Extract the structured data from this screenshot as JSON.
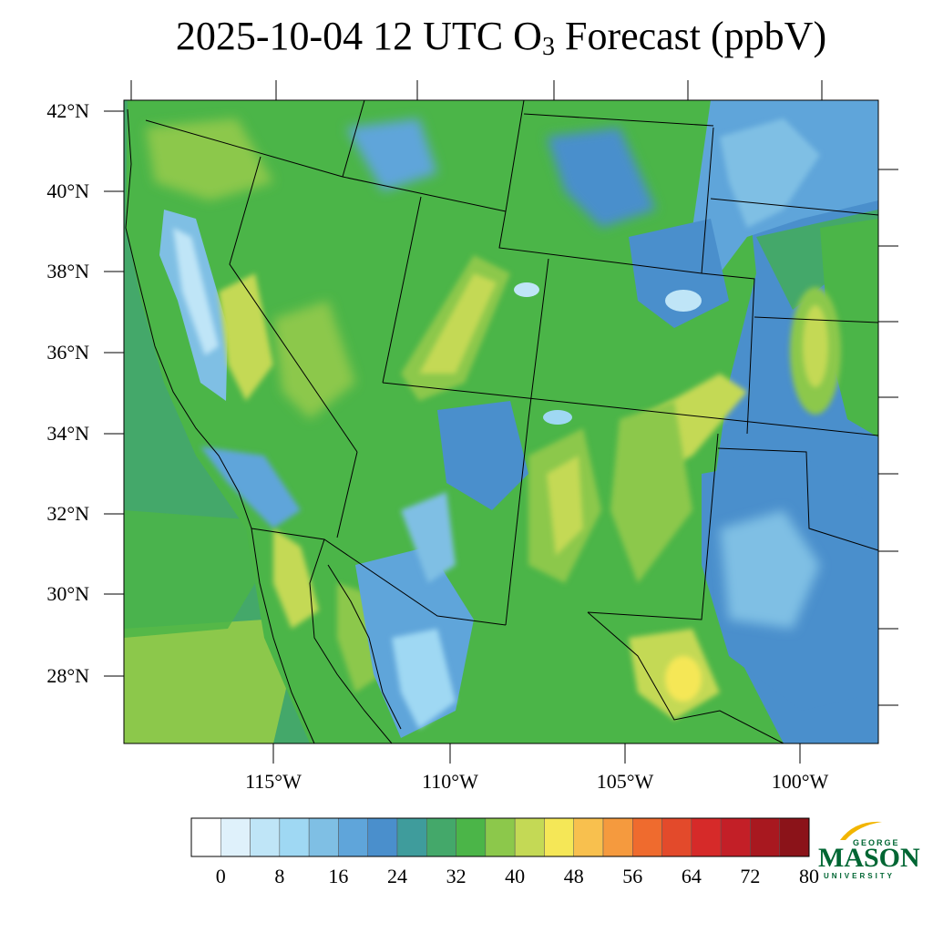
{
  "title": {
    "prefix": "2025-10-04 12 UTC O",
    "subscript": "3",
    "suffix": " Forecast (ppbV)"
  },
  "lat_labels": [
    "42°N",
    "40°N",
    "38°N",
    "36°N",
    "34°N",
    "32°N",
    "30°N",
    "28°N"
  ],
  "lon_labels": [
    "115°W",
    "110°W",
    "105°W",
    "100°W"
  ],
  "colorbar": {
    "tick_labels": [
      "0",
      "8",
      "16",
      "24",
      "32",
      "40",
      "48",
      "56",
      "64",
      "72",
      "80"
    ],
    "colors": [
      "#ffffff",
      "#dff1fb",
      "#bfe5f7",
      "#9fd8f3",
      "#7fbfe4",
      "#5fa5da",
      "#4a8fcc",
      "#3f9c9c",
      "#44a86a",
      "#4bb548",
      "#8cc84b",
      "#c4d955",
      "#f5e757",
      "#f8c04e",
      "#f59a3e",
      "#ef6b2e",
      "#e34a2b",
      "#d62a29",
      "#c31f27",
      "#a8181f",
      "#8b1319"
    ]
  },
  "logo": {
    "line1": "GEORGE",
    "line2": "MASON",
    "line3": "UNIVERSITY",
    "color": "#006633",
    "accent": "#f2b500"
  }
}
